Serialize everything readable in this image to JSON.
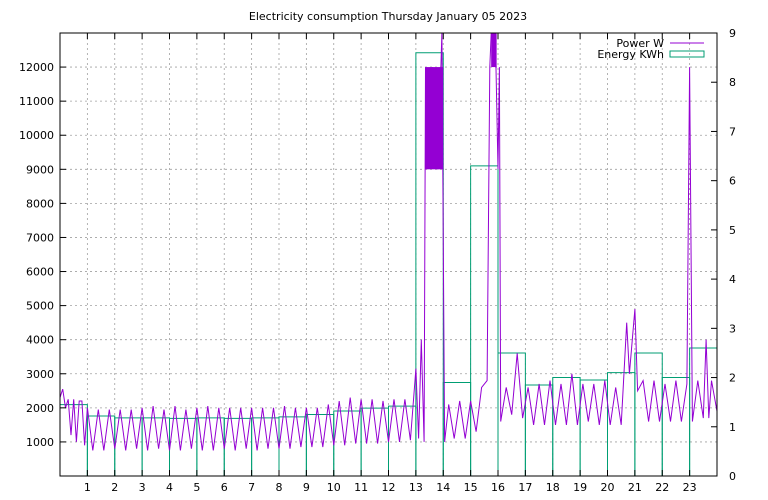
{
  "chart_data": {
    "type": "bar+line",
    "title": "Electricity consumption Thursday January 05 2023",
    "grid": true,
    "legend_position": "top-right",
    "x_ticks": [
      "1",
      "2",
      "3",
      "4",
      "5",
      "6",
      "7",
      "8",
      "9",
      "10",
      "11",
      "12",
      "13",
      "14",
      "15",
      "16",
      "17",
      "18",
      "19",
      "20",
      "21",
      "22",
      "23"
    ],
    "x_range": [
      0,
      24
    ],
    "y_left": {
      "range": [
        0,
        13000
      ],
      "ticks": [
        "1000",
        "2000",
        "3000",
        "4000",
        "5000",
        "6000",
        "7000",
        "8000",
        "9000",
        "10000",
        "11000",
        "12000"
      ]
    },
    "y_right": {
      "range": [
        0,
        9
      ],
      "ticks": [
        "0",
        "1",
        "2",
        "3",
        "4",
        "5",
        "6",
        "7",
        "8",
        "9"
      ]
    },
    "series": [
      {
        "name": "Power W",
        "axis": "left",
        "style": "line",
        "color": "#9400d3",
        "points": [
          [
            0.0,
            2300
          ],
          [
            0.1,
            2550
          ],
          [
            0.2,
            2000
          ],
          [
            0.3,
            2250
          ],
          [
            0.4,
            1200
          ],
          [
            0.5,
            2250
          ],
          [
            0.6,
            1000
          ],
          [
            0.7,
            2200
          ],
          [
            0.8,
            2200
          ],
          [
            0.9,
            900
          ],
          [
            1.0,
            2000
          ],
          [
            1.2,
            750
          ],
          [
            1.4,
            1950
          ],
          [
            1.6,
            750
          ],
          [
            1.8,
            1950
          ],
          [
            2.0,
            800
          ],
          [
            2.2,
            1950
          ],
          [
            2.4,
            750
          ],
          [
            2.6,
            1950
          ],
          [
            2.8,
            800
          ],
          [
            3.0,
            2000
          ],
          [
            3.2,
            750
          ],
          [
            3.4,
            2050
          ],
          [
            3.6,
            800
          ],
          [
            3.8,
            1950
          ],
          [
            4.0,
            750
          ],
          [
            4.2,
            2050
          ],
          [
            4.4,
            750
          ],
          [
            4.6,
            1950
          ],
          [
            4.8,
            800
          ],
          [
            5.0,
            2000
          ],
          [
            5.2,
            750
          ],
          [
            5.4,
            2050
          ],
          [
            5.6,
            750
          ],
          [
            5.8,
            2000
          ],
          [
            6.0,
            800
          ],
          [
            6.2,
            2000
          ],
          [
            6.4,
            750
          ],
          [
            6.6,
            2000
          ],
          [
            6.8,
            800
          ],
          [
            7.0,
            2000
          ],
          [
            7.2,
            750
          ],
          [
            7.4,
            2000
          ],
          [
            7.6,
            800
          ],
          [
            7.8,
            2000
          ],
          [
            8.0,
            800
          ],
          [
            8.2,
            2050
          ],
          [
            8.4,
            800
          ],
          [
            8.6,
            2000
          ],
          [
            8.8,
            850
          ],
          [
            9.0,
            2000
          ],
          [
            9.2,
            850
          ],
          [
            9.4,
            2000
          ],
          [
            9.6,
            850
          ],
          [
            9.8,
            2100
          ],
          [
            10.0,
            900
          ],
          [
            10.2,
            2200
          ],
          [
            10.4,
            900
          ],
          [
            10.6,
            2300
          ],
          [
            10.8,
            950
          ],
          [
            11.0,
            2250
          ],
          [
            11.2,
            950
          ],
          [
            11.4,
            2250
          ],
          [
            11.6,
            950
          ],
          [
            11.8,
            2200
          ],
          [
            12.0,
            1000
          ],
          [
            12.2,
            2250
          ],
          [
            12.4,
            1000
          ],
          [
            12.6,
            2250
          ],
          [
            12.8,
            1050
          ],
          [
            13.0,
            3150
          ],
          [
            13.1,
            1100
          ],
          [
            13.2,
            4000
          ],
          [
            13.3,
            1000
          ],
          [
            13.35,
            12000
          ],
          [
            13.4,
            9000
          ],
          [
            13.6,
            12000
          ],
          [
            13.8,
            9000
          ],
          [
            13.95,
            13000
          ],
          [
            14.05,
            1000
          ],
          [
            14.2,
            2100
          ],
          [
            14.4,
            1100
          ],
          [
            14.6,
            2200
          ],
          [
            14.8,
            1100
          ],
          [
            15.0,
            2200
          ],
          [
            15.2,
            1300
          ],
          [
            15.4,
            2600
          ],
          [
            15.6,
            2800
          ],
          [
            15.7,
            12000
          ],
          [
            15.75,
            13000
          ],
          [
            15.9,
            13000
          ],
          [
            16.0,
            9000
          ],
          [
            16.05,
            12000
          ],
          [
            16.1,
            1600
          ],
          [
            16.3,
            2600
          ],
          [
            16.5,
            1800
          ],
          [
            16.7,
            3600
          ],
          [
            16.9,
            1700
          ],
          [
            17.1,
            2600
          ],
          [
            17.3,
            1500
          ],
          [
            17.5,
            2700
          ],
          [
            17.7,
            1500
          ],
          [
            17.9,
            2800
          ],
          [
            18.1,
            1500
          ],
          [
            18.3,
            2700
          ],
          [
            18.5,
            1500
          ],
          [
            18.7,
            3000
          ],
          [
            18.9,
            1500
          ],
          [
            19.1,
            2700
          ],
          [
            19.3,
            1600
          ],
          [
            19.5,
            2700
          ],
          [
            19.7,
            1500
          ],
          [
            19.9,
            2800
          ],
          [
            20.1,
            1500
          ],
          [
            20.3,
            2600
          ],
          [
            20.5,
            1500
          ],
          [
            20.7,
            4500
          ],
          [
            20.8,
            3000
          ],
          [
            21.0,
            4900
          ],
          [
            21.1,
            2500
          ],
          [
            21.3,
            2800
          ],
          [
            21.5,
            1600
          ],
          [
            21.7,
            2800
          ],
          [
            21.9,
            1600
          ],
          [
            22.1,
            2700
          ],
          [
            22.3,
            1600
          ],
          [
            22.5,
            2800
          ],
          [
            22.7,
            1600
          ],
          [
            22.9,
            2700
          ],
          [
            23.0,
            12000
          ],
          [
            23.1,
            1600
          ],
          [
            23.3,
            2800
          ],
          [
            23.5,
            1700
          ],
          [
            23.6,
            4000
          ],
          [
            23.7,
            1700
          ],
          [
            23.8,
            2800
          ],
          [
            24.0,
            1900
          ]
        ]
      },
      {
        "name": "Energy KWh",
        "axis": "right",
        "style": "steps",
        "color": "#009e73",
        "hours": [
          0,
          1,
          2,
          3,
          4,
          5,
          6,
          7,
          8,
          9,
          10,
          11,
          12,
          13,
          14,
          15,
          16,
          17,
          18,
          19,
          20,
          21,
          22,
          23
        ],
        "values": [
          1.45,
          1.22,
          1.18,
          1.18,
          1.17,
          1.18,
          1.17,
          1.18,
          1.2,
          1.25,
          1.32,
          1.38,
          1.42,
          8.6,
          1.9,
          6.3,
          2.5,
          1.85,
          2.0,
          1.95,
          2.1,
          2.5,
          2.0,
          2.6
        ]
      }
    ]
  }
}
